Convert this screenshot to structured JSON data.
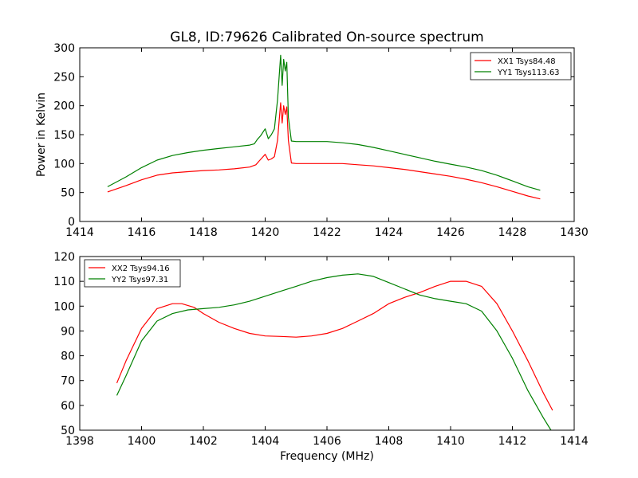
{
  "title": "GL8, ID:79626 Calibrated On-source spectrum",
  "colors": {
    "xx": "#ff0000",
    "yy": "#008000",
    "frame": "#000000",
    "background": "#ffffff"
  },
  "chart_data": [
    {
      "type": "line",
      "title": "GL8, ID:79626 Calibrated On-source spectrum",
      "xlabel": "",
      "ylabel": "Power in Kelvin",
      "xlim": [
        1414,
        1430
      ],
      "ylim": [
        0,
        300
      ],
      "xticks": [
        "1414",
        "1416",
        "1418",
        "1420",
        "1422",
        "1424",
        "1426",
        "1428",
        "1430"
      ],
      "yticks": [
        "0",
        "50",
        "100",
        "150",
        "200",
        "250",
        "300"
      ],
      "grid": false,
      "legend_position": "top-right",
      "series": [
        {
          "name": "XX1 Tsys84.48",
          "color": "#ff0000",
          "x": [
            1414.9,
            1415.5,
            1416.0,
            1416.5,
            1417.0,
            1417.5,
            1418.0,
            1418.5,
            1419.0,
            1419.5,
            1419.7,
            1419.8,
            1419.9,
            1420.0,
            1420.1,
            1420.2,
            1420.3,
            1420.4,
            1420.5,
            1420.55,
            1420.6,
            1420.65,
            1420.7,
            1420.75,
            1420.85,
            1421.0,
            1421.5,
            1422.0,
            1422.5,
            1423.0,
            1423.5,
            1424.0,
            1424.5,
            1425.0,
            1425.5,
            1426.0,
            1426.5,
            1427.0,
            1427.5,
            1428.0,
            1428.5,
            1428.9
          ],
          "y": [
            51,
            62,
            72,
            80,
            84,
            86,
            88,
            89,
            91,
            94,
            98,
            104,
            110,
            116,
            106,
            108,
            112,
            140,
            205,
            170,
            200,
            185,
            198,
            140,
            101,
            100,
            100,
            100,
            100,
            98,
            96,
            93,
            90,
            86,
            82,
            78,
            73,
            67,
            60,
            52,
            44,
            39
          ]
        },
        {
          "name": "YY1 Tsys113.63",
          "color": "#008000",
          "x": [
            1414.9,
            1415.5,
            1416.0,
            1416.5,
            1417.0,
            1417.5,
            1418.0,
            1418.5,
            1419.0,
            1419.5,
            1419.65,
            1419.75,
            1419.85,
            1420.0,
            1420.1,
            1420.2,
            1420.3,
            1420.4,
            1420.5,
            1420.55,
            1420.6,
            1420.65,
            1420.7,
            1420.75,
            1420.85,
            1421.0,
            1421.5,
            1422.0,
            1422.5,
            1423.0,
            1423.5,
            1424.0,
            1424.5,
            1425.0,
            1425.5,
            1426.0,
            1426.5,
            1427.0,
            1427.5,
            1428.0,
            1428.5,
            1428.9
          ],
          "y": [
            60,
            77,
            93,
            106,
            114,
            119,
            123,
            126,
            129,
            132,
            134,
            142,
            148,
            160,
            143,
            150,
            160,
            210,
            287,
            235,
            280,
            260,
            275,
            180,
            139,
            138,
            138,
            138,
            136,
            133,
            128,
            122,
            116,
            110,
            104,
            99,
            94,
            88,
            80,
            70,
            60,
            54
          ]
        }
      ]
    },
    {
      "type": "line",
      "title": "",
      "xlabel": "Frequency (MHz)",
      "ylabel": "",
      "xlim": [
        1398,
        1414
      ],
      "ylim": [
        50,
        120
      ],
      "xticks": [
        "1398",
        "1400",
        "1402",
        "1404",
        "1406",
        "1408",
        "1410",
        "1412",
        "1414"
      ],
      "yticks": [
        "50",
        "60",
        "70",
        "80",
        "90",
        "100",
        "110",
        "120"
      ],
      "grid": false,
      "legend_position": "top-left",
      "series": [
        {
          "name": "XX2 Tsys94.16",
          "color": "#ff0000",
          "x": [
            1399.2,
            1399.5,
            1400.0,
            1400.5,
            1401.0,
            1401.3,
            1401.7,
            1402.0,
            1402.5,
            1403.0,
            1403.5,
            1404.0,
            1404.5,
            1405.0,
            1405.5,
            1406.0,
            1406.5,
            1407.0,
            1407.5,
            1408.0,
            1408.5,
            1409.0,
            1409.5,
            1410.0,
            1410.5,
            1411.0,
            1411.5,
            1412.0,
            1412.5,
            1413.0,
            1413.3
          ],
          "y": [
            69,
            78,
            91,
            99,
            101,
            101,
            99.5,
            97,
            93.5,
            91,
            89,
            88,
            87.8,
            87.5,
            88,
            89,
            91,
            94,
            97,
            101,
            103.5,
            105.5,
            108,
            110,
            110,
            108,
            101,
            90,
            78,
            65,
            58
          ]
        },
        {
          "name": "YY2 Tsys97.31",
          "color": "#008000",
          "x": [
            1399.2,
            1399.5,
            1400.0,
            1400.5,
            1401.0,
            1401.5,
            1402.0,
            1402.5,
            1403.0,
            1403.5,
            1404.0,
            1404.5,
            1405.0,
            1405.5,
            1406.0,
            1406.5,
            1407.0,
            1407.5,
            1408.0,
            1408.5,
            1409.0,
            1409.5,
            1410.0,
            1410.5,
            1411.0,
            1411.5,
            1412.0,
            1412.5,
            1413.0,
            1413.25
          ],
          "y": [
            64,
            72,
            86,
            94,
            97,
            98.5,
            99,
            99.5,
            100.5,
            102,
            104,
            106,
            108,
            110,
            111.5,
            112.5,
            113,
            112,
            109.5,
            107,
            104.5,
            103,
            102,
            101,
            98,
            90,
            79,
            66,
            55,
            50
          ]
        }
      ]
    }
  ]
}
